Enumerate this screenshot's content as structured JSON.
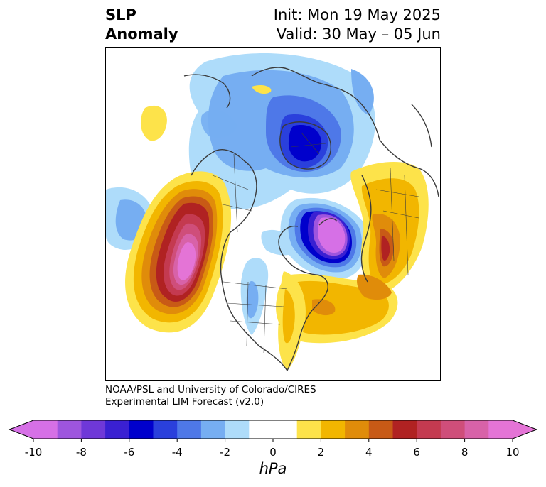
{
  "title": {
    "main_line1": "SLP",
    "main_line2": "Anomaly",
    "init": "Init: Mon 19 May 2025",
    "valid": "Valid: 30 May – 05 Jun"
  },
  "credit": {
    "line1": "NOAA/PSL and University of Colorado/CIRES",
    "line2": "Experimental LIM Forecast (v2.0)"
  },
  "colorbar": {
    "unit": "hPa",
    "ticks": [
      "-10",
      "-8",
      "-6",
      "-4",
      "-2",
      "0",
      "2",
      "4",
      "6",
      "8",
      "10"
    ],
    "levels": [
      -10,
      -9,
      -8,
      -7,
      -6,
      -5,
      -4,
      -3,
      -2,
      -1,
      1,
      2,
      3,
      4,
      5,
      6,
      7,
      8,
      9,
      10
    ],
    "colors": [
      "#d670e6",
      "#9e55de",
      "#6f38d8",
      "#3a20d2",
      "#0000cc",
      "#2a40dc",
      "#4e78e8",
      "#76aef2",
      "#aedcfa",
      "#ffffff",
      "#fde34a",
      "#f2b600",
      "#e08c0a",
      "#c85a16",
      "#b02222",
      "#c43a50",
      "#cf4e7a",
      "#d862a8",
      "#e474d6"
    ],
    "under_color": "#d670e6",
    "over_color": "#e474d6"
  },
  "map": {
    "field": "SLP anomaly",
    "features": [
      {
        "name": "negative-anomaly-arctic",
        "sign": "negative",
        "peak_hpa": -6
      },
      {
        "name": "negative-anomaly-north-atlantic",
        "sign": "negative",
        "peak_hpa": -10
      },
      {
        "name": "negative-anomaly-north-pacific",
        "sign": "negative",
        "peak_hpa": -3
      },
      {
        "name": "negative-anomaly-central-north-america",
        "sign": "negative",
        "peak_hpa": -3
      },
      {
        "name": "positive-anomaly-northeast-pacific",
        "sign": "positive",
        "peak_hpa": 10
      },
      {
        "name": "positive-anomaly-western-europe",
        "sign": "positive",
        "peak_hpa": 6
      },
      {
        "name": "positive-anomaly-subtropical-atlantic",
        "sign": "positive",
        "peak_hpa": 5
      },
      {
        "name": "positive-anomaly-eastern-us",
        "sign": "positive",
        "peak_hpa": 2
      },
      {
        "name": "positive-anomaly-western-pacific",
        "sign": "positive",
        "peak_hpa": 2
      },
      {
        "name": "positive-anomaly-baffin",
        "sign": "positive",
        "peak_hpa": 2
      }
    ]
  }
}
